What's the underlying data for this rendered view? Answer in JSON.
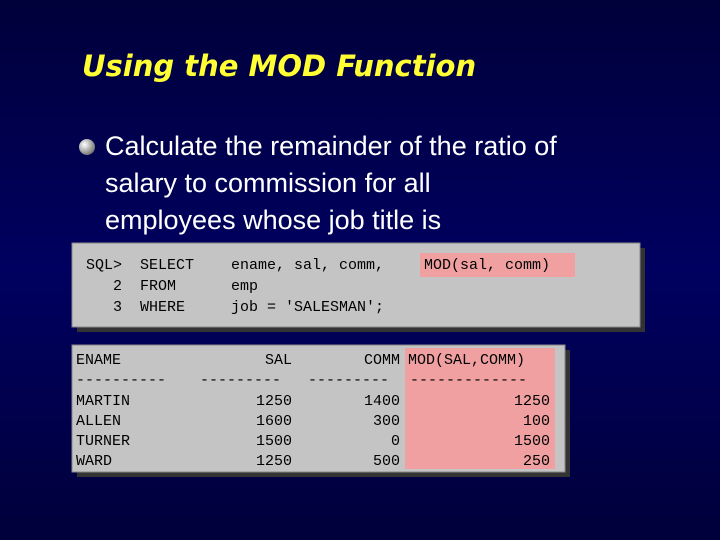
{
  "title": "Using the MOD Function",
  "bullet": {
    "lines": [
      "Calculate the remainder of the ratio of",
      "salary to commission for all",
      "employees whose job title is"
    ]
  },
  "sql": {
    "lines": [
      {
        "prompt": "SQL>",
        "keyword": "SELECT",
        "text": "ename, sal, comm,",
        "highlight": "MOD(sal, comm)"
      },
      {
        "prompt": "2",
        "keyword": "FROM",
        "text": "emp"
      },
      {
        "prompt": "3",
        "keyword": "WHERE",
        "text": "job = 'SALESMAN';"
      }
    ]
  },
  "result": {
    "columns": [
      "ENAME",
      "SAL",
      "COMM",
      "MOD(SAL,COMM)"
    ],
    "separators": [
      "----------",
      "---------",
      "---------",
      "-------------"
    ],
    "rows": [
      [
        "MARTIN",
        1250,
        1400,
        1250
      ],
      [
        "ALLEN",
        1600,
        300,
        100
      ],
      [
        "TURNER",
        1500,
        0,
        1500
      ],
      [
        "WARD",
        1250,
        500,
        250
      ]
    ]
  }
}
